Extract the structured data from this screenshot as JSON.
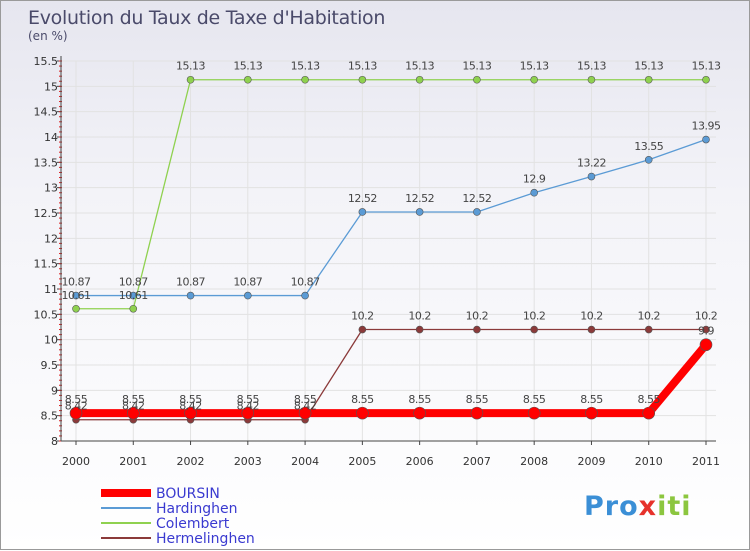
{
  "chart_data": {
    "type": "line",
    "title": "Evolution du Taux de Taxe d'Habitation",
    "subtitle": "(en %)",
    "categories": [
      "2000",
      "2001",
      "2002",
      "2003",
      "2004",
      "2005",
      "2006",
      "2007",
      "2008",
      "2009",
      "2010",
      "2011"
    ],
    "ylim": [
      8,
      15.5
    ],
    "yticks": [
      "8",
      "8.5",
      "9",
      "9.5",
      "10",
      "10.5",
      "11",
      "11.5",
      "12",
      "12.5",
      "13",
      "13.5",
      "14",
      "14.5",
      "15",
      "15.5"
    ],
    "series": [
      {
        "name": "BOURSIN",
        "color": "#ff0000",
        "values": [
          8.55,
          8.55,
          8.55,
          8.55,
          8.55,
          8.55,
          8.55,
          8.55,
          8.55,
          8.55,
          8.55,
          9.9
        ],
        "labels": [
          "8.55",
          "8.55",
          "8.55",
          "8.55",
          "8.55",
          "8.55",
          "8.55",
          "8.55",
          "8.55",
          "8.55",
          "8.55",
          "9.9"
        ]
      },
      {
        "name": "Hardinghen",
        "color": "#5b9bd5",
        "values": [
          10.87,
          10.87,
          10.87,
          10.87,
          10.87,
          12.52,
          12.52,
          12.52,
          12.9,
          13.22,
          13.55,
          13.95
        ],
        "labels": [
          "10.87",
          "10.87",
          "10.87",
          "10.87",
          "10.87",
          "12.52",
          "12.52",
          "12.52",
          "12.9",
          "13.22",
          "13.55",
          "13.95"
        ]
      },
      {
        "name": "Colembert",
        "color": "#8fd14f",
        "values": [
          10.61,
          10.61,
          15.13,
          15.13,
          15.13,
          15.13,
          15.13,
          15.13,
          15.13,
          15.13,
          15.13,
          15.13
        ],
        "labels": [
          "10.61",
          "10.61",
          "15.13",
          "15.13",
          "15.13",
          "15.13",
          "15.13",
          "15.13",
          "15.13",
          "15.13",
          "15.13",
          "15.13"
        ]
      },
      {
        "name": "Hermelinghen",
        "color": "#8b3a3a",
        "values": [
          8.42,
          8.42,
          8.42,
          8.42,
          8.42,
          10.2,
          10.2,
          10.2,
          10.2,
          10.2,
          10.2,
          10.2
        ],
        "labels": [
          "8.42",
          "8.42",
          "8.42",
          "8.42",
          "8.42",
          "10.2",
          "10.2",
          "10.2",
          "10.2",
          "10.2",
          "10.2",
          "10.2"
        ]
      }
    ]
  },
  "brand": {
    "prefix": "Pro",
    "x": "x",
    "suffix": "iti"
  }
}
